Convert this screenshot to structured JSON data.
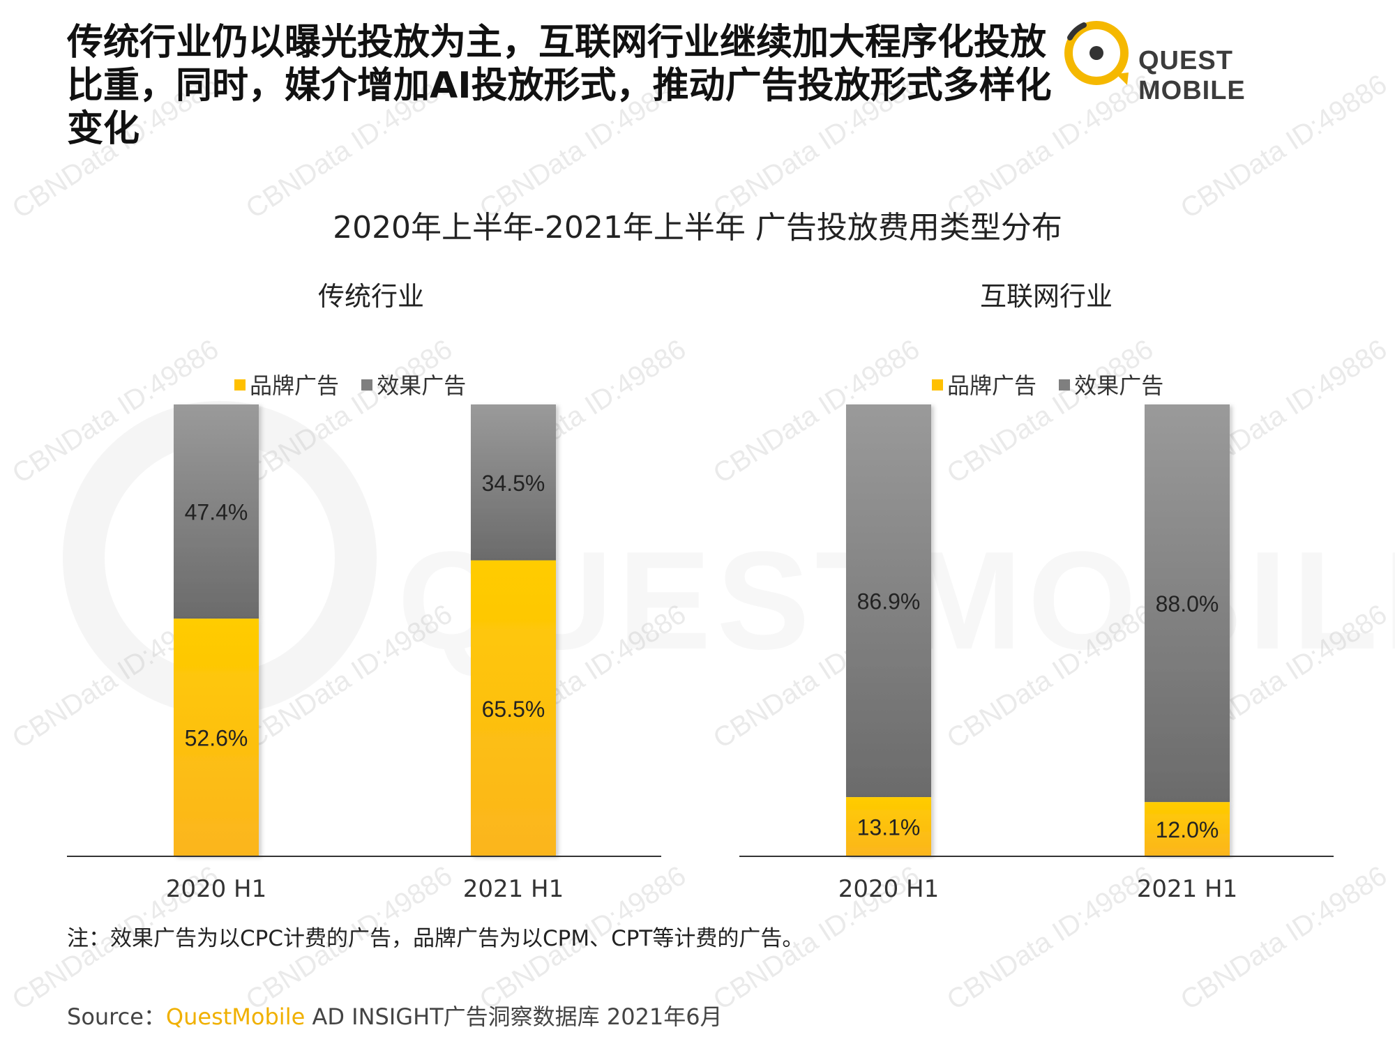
{
  "headline": "传统行业仍以曝光投放为主，互联网行业继续加大程序化投放比重，同时，媒介增加AI投放形式，推动广告投放形式多样化变化",
  "logo": {
    "text": "QUEST MOBILE",
    "icon": "quest-mobile-logo-icon"
  },
  "watermark": {
    "id_text": "CBNData ID:49886",
    "background_text": "QUESTMOBILE"
  },
  "colors": {
    "brand": "#FFC000",
    "effect": "#7F7F7F",
    "accent": "#F0B000"
  },
  "chart_data": [
    {
      "type": "bar",
      "stacked": true,
      "title": "传统行业",
      "categories": [
        "2020 H1",
        "2021 H1"
      ],
      "series": [
        {
          "name": "品牌广告",
          "values": [
            52.6,
            65.5
          ],
          "labels": [
            "52.6%",
            "65.5%"
          ]
        },
        {
          "name": "效果广告",
          "values": [
            47.4,
            34.5
          ],
          "labels": [
            "47.4%",
            "34.5%"
          ]
        }
      ],
      "ylim": [
        0,
        100
      ],
      "legend": "top",
      "grid": false
    },
    {
      "type": "bar",
      "stacked": true,
      "title": "互联网行业",
      "categories": [
        "2020 H1",
        "2021 H1"
      ],
      "series": [
        {
          "name": "品牌广告",
          "values": [
            13.1,
            12.0
          ],
          "labels": [
            "13.1%",
            "12.0%"
          ]
        },
        {
          "name": "效果广告",
          "values": [
            86.9,
            88.0
          ],
          "labels": [
            "86.9%",
            "88.0%"
          ]
        }
      ],
      "ylim": [
        0,
        100
      ],
      "legend": "top",
      "grid": false
    }
  ],
  "chart_title": "2020年上半年-2021年上半年 广告投放费用类型分布",
  "note": "注：效果广告为以CPC计费的广告，品牌广告为以CPM、CPT等计费的广告。",
  "source": {
    "prefix": "Source：",
    "brand": "QuestMobile",
    "rest": " AD INSIGHT广告洞察数据库 2021年6月"
  }
}
